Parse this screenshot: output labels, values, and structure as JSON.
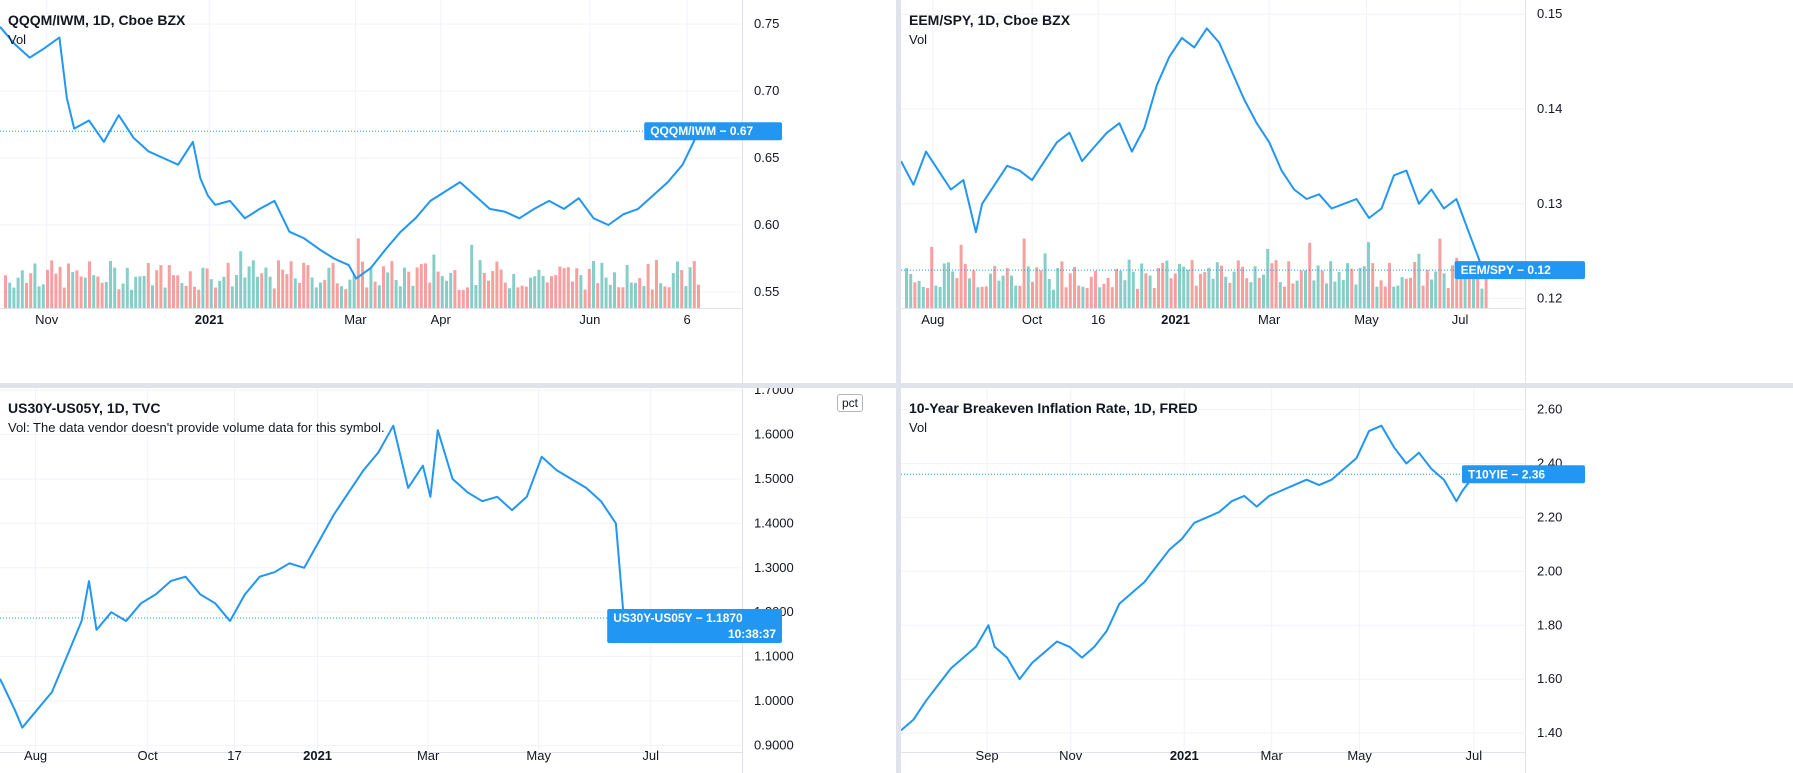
{
  "colors": {
    "line": "#2196f3",
    "vol_up": "#26a69a",
    "vol_down": "#ef5350",
    "grid": "#f0f3fa",
    "axis_border": "#e0e3eb",
    "badge": "#2196f3"
  },
  "charts": {
    "a": {
      "title": "QQQM/IWM, 1D, Cboe BZX",
      "subtitle": "Vol",
      "badge_label": "QQQM/IWM",
      "badge_value": "0.67",
      "badge_sep": "−",
      "last": 0.67
    },
    "b": {
      "title": "EEM/SPY, 1D, Cboe BZX",
      "subtitle": "Vol",
      "badge_label": "EEM/SPY",
      "badge_value": "0.12",
      "badge_sep": "−",
      "last": 0.123
    },
    "c": {
      "title": "US30Y-US05Y, 1D, TVC",
      "subtitle": "Vol: The data vendor doesn't provide volume data for this symbol.",
      "badge_label": "US30Y-US05Y",
      "badge_value": "1.1870",
      "badge_sep": "−",
      "badge_time": "10:38:37",
      "pct_label": "pct",
      "last": 1.187
    },
    "d": {
      "title": "10-Year Breakeven Inflation Rate, 1D, FRED",
      "subtitle": "Vol",
      "badge_label": "T10YIE",
      "badge_value": "2.36",
      "badge_sep": "−",
      "last": 2.36
    }
  },
  "chart_data": [
    {
      "type": "line",
      "name": "QQQM/IWM",
      "y_ticks": [
        "0.75",
        "0.70",
        "0.65",
        "0.60",
        "0.55"
      ],
      "y_tick_values": [
        0.75,
        0.7,
        0.65,
        0.6,
        0.55
      ],
      "ylim": [
        0.538,
        0.768
      ],
      "x_ticks": [
        "Nov",
        "2021",
        "Mar",
        "Apr",
        "Jun",
        "6"
      ],
      "x_tick_positions": [
        0.063,
        0.282,
        0.479,
        0.594,
        0.795,
        0.926
      ],
      "x": [
        0.0,
        0.02,
        0.04,
        0.06,
        0.08,
        0.09,
        0.1,
        0.12,
        0.14,
        0.16,
        0.18,
        0.2,
        0.22,
        0.24,
        0.26,
        0.27,
        0.28,
        0.29,
        0.31,
        0.33,
        0.35,
        0.37,
        0.39,
        0.41,
        0.43,
        0.45,
        0.47,
        0.48,
        0.5,
        0.52,
        0.54,
        0.56,
        0.58,
        0.6,
        0.62,
        0.64,
        0.66,
        0.68,
        0.7,
        0.72,
        0.74,
        0.76,
        0.78,
        0.8,
        0.82,
        0.84,
        0.86,
        0.88,
        0.9,
        0.92,
        0.94,
        0.96
      ],
      "y": [
        0.748,
        0.735,
        0.725,
        0.732,
        0.74,
        0.695,
        0.672,
        0.678,
        0.662,
        0.682,
        0.665,
        0.655,
        0.65,
        0.645,
        0.662,
        0.635,
        0.622,
        0.615,
        0.618,
        0.605,
        0.612,
        0.618,
        0.595,
        0.59,
        0.582,
        0.575,
        0.57,
        0.56,
        0.568,
        0.582,
        0.595,
        0.605,
        0.618,
        0.625,
        0.632,
        0.622,
        0.612,
        0.61,
        0.605,
        0.612,
        0.618,
        0.612,
        0.62,
        0.605,
        0.6,
        0.608,
        0.612,
        0.622,
        0.632,
        0.645,
        0.668,
        0.665
      ],
      "volume_up": [
        0.0,
        0.02,
        0.05,
        0.07,
        0.1,
        0.13,
        0.17,
        0.2,
        0.24,
        0.27,
        0.31,
        0.34,
        0.37,
        0.41,
        0.44,
        0.47,
        0.49,
        0.52,
        0.55,
        0.58,
        0.62,
        0.66,
        0.7,
        0.73,
        0.77,
        0.81,
        0.84,
        0.87,
        0.91,
        0.94
      ],
      "last": 0.67
    },
    {
      "type": "line",
      "name": "EEM/SPY",
      "y_ticks": [
        "0.15",
        "0.14",
        "0.13",
        "0.12"
      ],
      "y_tick_values": [
        0.15,
        0.14,
        0.13,
        0.12
      ],
      "ylim": [
        0.119,
        0.1515
      ],
      "x_ticks": [
        "Aug",
        "Oct",
        "16",
        "2021",
        "Mar",
        "May",
        "Jul"
      ],
      "x_tick_positions": [
        0.051,
        0.21,
        0.316,
        0.44,
        0.59,
        0.746,
        0.896
      ],
      "x": [
        0.0,
        0.02,
        0.04,
        0.06,
        0.08,
        0.1,
        0.12,
        0.13,
        0.15,
        0.17,
        0.19,
        0.21,
        0.23,
        0.25,
        0.27,
        0.29,
        0.31,
        0.33,
        0.35,
        0.37,
        0.39,
        0.41,
        0.43,
        0.45,
        0.47,
        0.49,
        0.51,
        0.53,
        0.55,
        0.57,
        0.59,
        0.61,
        0.63,
        0.65,
        0.67,
        0.69,
        0.71,
        0.73,
        0.75,
        0.77,
        0.79,
        0.81,
        0.83,
        0.85,
        0.87,
        0.89,
        0.91,
        0.93
      ],
      "y": [
        0.1345,
        0.132,
        0.1355,
        0.1335,
        0.1315,
        0.1325,
        0.127,
        0.13,
        0.132,
        0.134,
        0.1335,
        0.1325,
        0.1345,
        0.1365,
        0.1375,
        0.1345,
        0.136,
        0.1375,
        0.1385,
        0.1355,
        0.138,
        0.1425,
        0.1455,
        0.1475,
        0.1465,
        0.1485,
        0.147,
        0.144,
        0.141,
        0.1385,
        0.1365,
        0.1335,
        0.1315,
        0.1305,
        0.131,
        0.1295,
        0.13,
        0.1305,
        0.1285,
        0.1295,
        0.133,
        0.1335,
        0.13,
        0.1315,
        0.1295,
        0.1305,
        0.127,
        0.1235
      ],
      "last": 0.123
    },
    {
      "type": "line",
      "name": "US30Y-US05Y",
      "y_ticks": [
        "1.7000",
        "1.6000",
        "1.5000",
        "1.4000",
        "1.3000",
        "1.2000",
        "1.1000",
        "1.0000",
        "0.9000"
      ],
      "y_tick_values": [
        1.7,
        1.6,
        1.5,
        1.4,
        1.3,
        1.2,
        1.1,
        1.0,
        0.9
      ],
      "ylim": [
        0.885,
        1.705
      ],
      "x_ticks": [
        "Aug",
        "Oct",
        "17",
        "2021",
        "Mar",
        "May",
        "Jul"
      ],
      "x_tick_positions": [
        0.048,
        0.199,
        0.316,
        0.428,
        0.577,
        0.726,
        0.877
      ],
      "x": [
        0.0,
        0.02,
        0.03,
        0.04,
        0.05,
        0.07,
        0.09,
        0.11,
        0.12,
        0.13,
        0.15,
        0.17,
        0.19,
        0.21,
        0.23,
        0.25,
        0.27,
        0.29,
        0.31,
        0.33,
        0.35,
        0.37,
        0.39,
        0.41,
        0.43,
        0.45,
        0.47,
        0.49,
        0.51,
        0.53,
        0.55,
        0.57,
        0.58,
        0.59,
        0.61,
        0.63,
        0.65,
        0.67,
        0.69,
        0.71,
        0.73,
        0.75,
        0.77,
        0.79,
        0.81,
        0.83,
        0.84,
        0.85,
        0.86,
        0.87
      ],
      "y": [
        1.05,
        0.98,
        0.94,
        0.96,
        0.98,
        1.02,
        1.1,
        1.18,
        1.27,
        1.16,
        1.2,
        1.18,
        1.22,
        1.24,
        1.27,
        1.28,
        1.24,
        1.22,
        1.18,
        1.24,
        1.28,
        1.29,
        1.31,
        1.3,
        1.36,
        1.42,
        1.47,
        1.52,
        1.56,
        1.62,
        1.48,
        1.53,
        1.46,
        1.61,
        1.5,
        1.47,
        1.45,
        1.46,
        1.43,
        1.46,
        1.55,
        1.52,
        1.5,
        1.48,
        1.45,
        1.4,
        1.2,
        1.15,
        1.19,
        1.187
      ],
      "last": 1.187
    },
    {
      "type": "line",
      "name": "T10YIE",
      "y_ticks": [
        "2.60",
        "2.40",
        "2.20",
        "2.00",
        "1.80",
        "1.60",
        "1.40"
      ],
      "y_tick_values": [
        2.6,
        2.4,
        2.2,
        2.0,
        1.8,
        1.6,
        1.4
      ],
      "ylim": [
        1.33,
        2.68
      ],
      "x_ticks": [
        "Sep",
        "Nov",
        "2021",
        "Mar",
        "May",
        "Jul"
      ],
      "x_tick_positions": [
        0.138,
        0.272,
        0.454,
        0.594,
        0.735,
        0.918
      ],
      "x": [
        0.0,
        0.02,
        0.04,
        0.06,
        0.08,
        0.1,
        0.12,
        0.14,
        0.15,
        0.17,
        0.19,
        0.21,
        0.23,
        0.25,
        0.27,
        0.29,
        0.31,
        0.33,
        0.35,
        0.37,
        0.39,
        0.41,
        0.43,
        0.45,
        0.47,
        0.49,
        0.51,
        0.53,
        0.55,
        0.57,
        0.59,
        0.61,
        0.63,
        0.65,
        0.67,
        0.69,
        0.71,
        0.73,
        0.75,
        0.77,
        0.79,
        0.81,
        0.83,
        0.85,
        0.87,
        0.89,
        0.9,
        0.92
      ],
      "y": [
        1.41,
        1.45,
        1.52,
        1.58,
        1.64,
        1.68,
        1.72,
        1.8,
        1.72,
        1.68,
        1.6,
        1.66,
        1.7,
        1.74,
        1.72,
        1.68,
        1.72,
        1.78,
        1.88,
        1.92,
        1.96,
        2.02,
        2.08,
        2.12,
        2.18,
        2.2,
        2.22,
        2.26,
        2.28,
        2.24,
        2.28,
        2.3,
        2.32,
        2.34,
        2.32,
        2.34,
        2.38,
        2.42,
        2.52,
        2.54,
        2.46,
        2.4,
        2.44,
        2.38,
        2.34,
        2.26,
        2.3,
        2.36
      ],
      "last": 2.36
    }
  ]
}
